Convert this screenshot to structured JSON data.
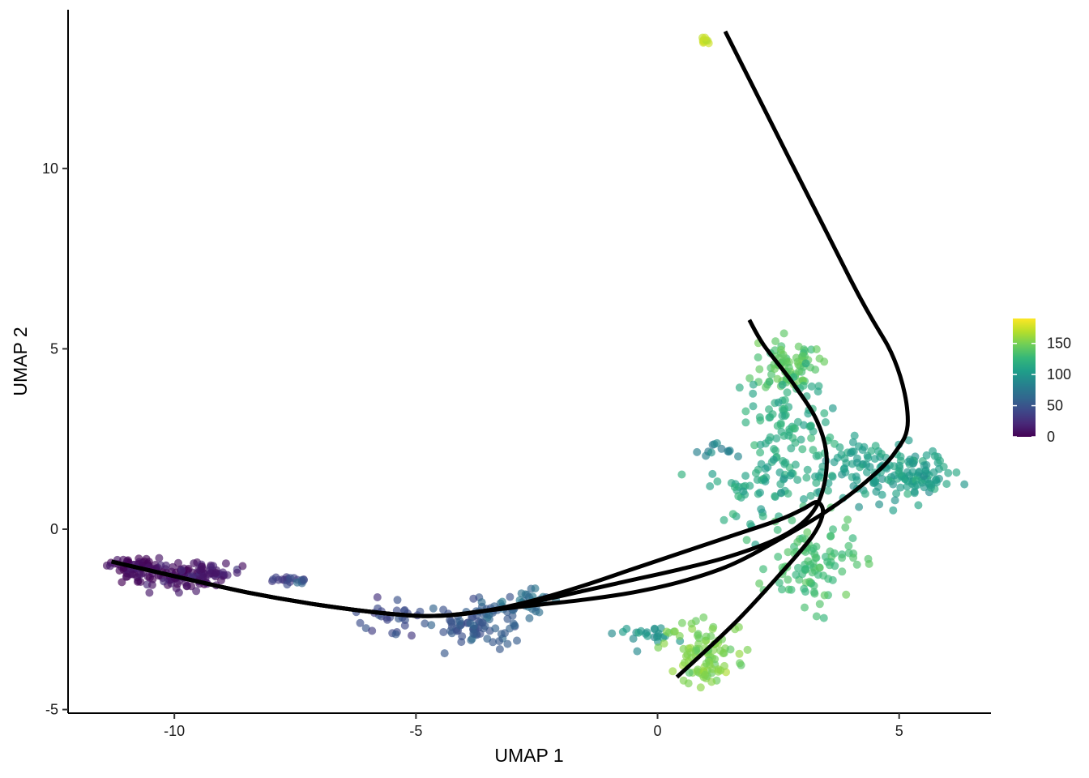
{
  "chart_data": {
    "type": "scatter",
    "title": "",
    "xlabel": "UMAP 1",
    "ylabel": "UMAP 2",
    "xlim": [
      -12.2,
      6.9
    ],
    "ylim": [
      -5.1,
      14.4
    ],
    "x_ticks": [
      -10,
      -5,
      0,
      5
    ],
    "y_ticks": [
      -5,
      0,
      5,
      10
    ],
    "x_tick_labels": [
      "-10",
      "-5",
      "0",
      "5"
    ],
    "y_tick_labels": [
      "-5",
      "0",
      "5",
      "10"
    ],
    "grid": false,
    "colorbar": {
      "placement": "right",
      "colormap": "viridis",
      "range": [
        0,
        190
      ],
      "ticks": [
        0,
        50,
        100,
        150
      ],
      "tick_labels": [
        "0",
        "50",
        "100",
        "150"
      ],
      "stops": [
        "#440154",
        "#482878",
        "#3e4989",
        "#31688e",
        "#26828e",
        "#1f9e89",
        "#35b779",
        "#6ece58",
        "#b5de2b",
        "#fde725"
      ]
    },
    "clusters": [
      {
        "cx": -10.9,
        "cy": -1.0,
        "sx": 0.25,
        "sy": 0.12,
        "n": 45,
        "value": 3
      },
      {
        "cx": -10.0,
        "cy": -1.3,
        "sx": 0.5,
        "sy": 0.2,
        "n": 95,
        "value": 8
      },
      {
        "cx": -9.2,
        "cy": -1.25,
        "sx": 0.3,
        "sy": 0.13,
        "n": 40,
        "value": 14
      },
      {
        "cx": -7.6,
        "cy": -1.4,
        "sx": 0.17,
        "sy": 0.05,
        "n": 16,
        "value": 35
      },
      {
        "cx": -7.35,
        "cy": -1.45,
        "sx": 0.06,
        "sy": 0.04,
        "n": 4,
        "value": 55
      },
      {
        "cx": -5.6,
        "cy": -2.45,
        "sx": 0.35,
        "sy": 0.25,
        "n": 28,
        "value": 42
      },
      {
        "cx": -4.1,
        "cy": -2.6,
        "sx": 0.35,
        "sy": 0.25,
        "n": 38,
        "value": 48
      },
      {
        "cx": -3.5,
        "cy": -2.55,
        "sx": 0.4,
        "sy": 0.35,
        "n": 55,
        "value": 58
      },
      {
        "cx": -2.7,
        "cy": -1.9,
        "sx": 0.25,
        "sy": 0.18,
        "n": 25,
        "value": 70
      },
      {
        "cx": -0.25,
        "cy": -2.9,
        "sx": 0.3,
        "sy": 0.12,
        "n": 22,
        "value": 95
      },
      {
        "cx": 0.95,
        "cy": -3.3,
        "sx": 0.45,
        "sy": 0.4,
        "n": 70,
        "value": 150
      },
      {
        "cx": 0.9,
        "cy": -3.95,
        "sx": 0.3,
        "sy": 0.15,
        "n": 25,
        "value": 155
      },
      {
        "cx": 2.7,
        "cy": 4.6,
        "sx": 0.32,
        "sy": 0.35,
        "n": 75,
        "value": 138
      },
      {
        "cx": 2.7,
        "cy": 3.0,
        "sx": 0.45,
        "sy": 0.7,
        "n": 80,
        "value": 118
      },
      {
        "cx": 2.3,
        "cy": 1.3,
        "sx": 0.6,
        "sy": 0.55,
        "n": 70,
        "value": 112
      },
      {
        "cx": 4.3,
        "cy": 1.6,
        "sx": 0.55,
        "sy": 0.45,
        "n": 85,
        "value": 108
      },
      {
        "cx": 5.4,
        "cy": 1.5,
        "sx": 0.35,
        "sy": 0.35,
        "n": 80,
        "value": 105
      },
      {
        "cx": 3.2,
        "cy": -1.0,
        "sx": 0.45,
        "sy": 0.55,
        "n": 100,
        "value": 132
      },
      {
        "cx": 1.2,
        "cy": 2.2,
        "sx": 0.25,
        "sy": 0.1,
        "n": 12,
        "value": 85
      },
      {
        "cx": 1.0,
        "cy": 13.55,
        "sx": 0.05,
        "sy": 0.05,
        "n": 10,
        "value": 175
      }
    ],
    "curves": [
      {
        "name": "",
        "x": [
          -11.3,
          -10.0,
          -8.5,
          -7.0,
          -5.5,
          -4.5,
          -3.5,
          -2.5,
          -1.5,
          -0.5,
          0.5,
          1.5,
          2.5,
          3.0,
          3.3,
          3.42,
          3.2,
          2.5,
          1.6,
          0.4
        ],
        "y": [
          -0.9,
          -1.3,
          -1.75,
          -2.1,
          -2.35,
          -2.4,
          -2.25,
          -1.95,
          -1.55,
          -1.1,
          -0.65,
          -0.2,
          0.25,
          0.55,
          0.75,
          0.45,
          -0.2,
          -1.3,
          -2.6,
          -4.1
        ]
      },
      {
        "name": "",
        "x": [
          -11.3,
          -10.0,
          -8.5,
          -7.0,
          -5.5,
          -4.5,
          -3.5,
          -2.5,
          -1.5,
          -0.5,
          0.5,
          1.5,
          2.5,
          3.1,
          3.4,
          3.5,
          3.3,
          2.8,
          2.2,
          1.9
        ],
        "y": [
          -0.9,
          -1.3,
          -1.75,
          -2.1,
          -2.35,
          -2.4,
          -2.25,
          -2.0,
          -1.7,
          -1.4,
          -1.1,
          -0.75,
          -0.25,
          0.3,
          1.0,
          2.0,
          3.0,
          4.05,
          5.1,
          5.8
        ]
      },
      {
        "name": "",
        "x": [
          -11.3,
          -10.0,
          -8.5,
          -7.0,
          -5.5,
          -4.5,
          -3.5,
          -2.5,
          -1.5,
          -0.5,
          0.5,
          1.5,
          2.5,
          3.5,
          4.3,
          4.9,
          5.18,
          4.9,
          4.0,
          1.4
        ],
        "y": [
          -0.9,
          -1.3,
          -1.75,
          -2.1,
          -2.35,
          -2.4,
          -2.25,
          -2.1,
          -1.95,
          -1.75,
          -1.45,
          -1.0,
          -0.3,
          0.5,
          1.3,
          2.1,
          3.0,
          4.7,
          6.9,
          13.8
        ]
      }
    ]
  }
}
